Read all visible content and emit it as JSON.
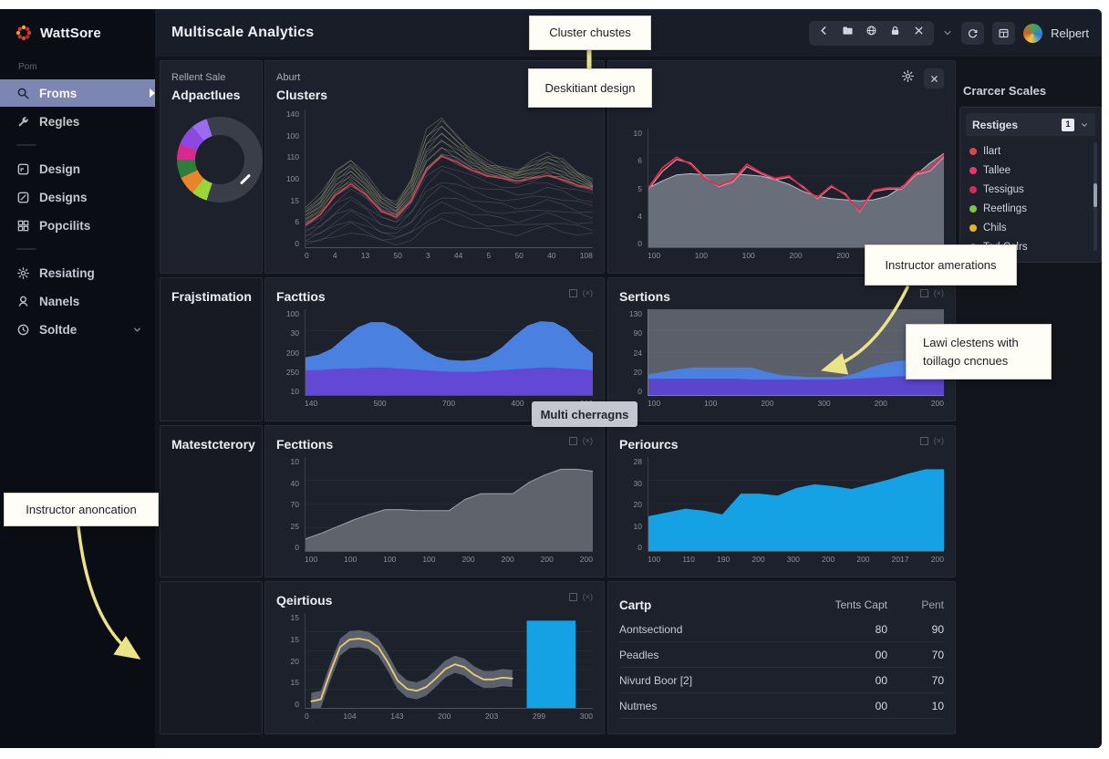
{
  "app": {
    "logo_text": "WattSore",
    "header_title": "Multiscale Analytics",
    "report_label": "Relpert"
  },
  "sidebar": {
    "section_label": "Pom",
    "items": [
      {
        "label": "Froms",
        "icon": "search",
        "active": true
      },
      {
        "label": "Regles",
        "icon": "wrench"
      },
      {
        "divider": true
      },
      {
        "label": "Design",
        "icon": "design"
      },
      {
        "label": "Designs",
        "icon": "designs"
      },
      {
        "label": "Popcilits",
        "icon": "grid"
      },
      {
        "divider": true
      },
      {
        "label": "Resiating",
        "icon": "gear"
      },
      {
        "label": "Nanels",
        "icon": "badge"
      },
      {
        "label": "Soltde",
        "icon": "clock",
        "chevron": true
      }
    ]
  },
  "panels": {
    "recent_subtitle": "Rellent Sale",
    "recent_title": "Adpactlues",
    "clusters_subtitle": "Aburt",
    "clusters_title": "Clusters",
    "row2_label": "Frajstimation",
    "facttios_title": "Facttios",
    "sertions_title": "Sertions",
    "row3_label": "Matestcterory",
    "fecttions_title": "Fecttions",
    "periourcs_title": "Periourcs",
    "qeirtious_title": "Qeirtious",
    "corner_glyph": "(×)"
  },
  "right_panel": {
    "title": "Crarcer Scales",
    "dropdown_label": "Restiges",
    "badge": "1",
    "legend": [
      {
        "label": "Ilart",
        "color": "#d94848"
      },
      {
        "label": "Tallee",
        "color": "#e23a6d"
      },
      {
        "label": "Tessigus",
        "color": "#d62a5c"
      },
      {
        "label": "Reetlings",
        "color": "#82c341"
      },
      {
        "label": "Chils",
        "color": "#e6b422"
      },
      {
        "label": "Tod Colrs",
        "color": "#2b9fe6"
      }
    ]
  },
  "table": {
    "title": "Cartp",
    "headers": [
      "Tents Capt",
      "Pent"
    ],
    "rows": [
      {
        "name": "Aontsectiond",
        "v1": "80",
        "v2": "90"
      },
      {
        "name": "Peadles",
        "v1": "00",
        "v2": "70"
      },
      {
        "name": "Nivurd Boor [2]",
        "v1": "00",
        "v2": "70"
      },
      {
        "name": "Nutmes",
        "v1": "00",
        "v2": "10"
      }
    ]
  },
  "annotations": {
    "callout_top_1": "Cluster chustes",
    "callout_top_2": "Deskitiant design",
    "callout_right_1": "Instructor amerations",
    "callout_right_2_line1": "Lawi clestens with",
    "callout_right_2_line2": "toillago cncnues",
    "callout_left": "Instructor anoncation",
    "tooltip": "Multi cherragns"
  },
  "colors": {
    "accent_blue": "#4a80e0",
    "accent_purple": "#6248d4",
    "accent_cyan": "#14a2e4",
    "accent_red": "#d8304e",
    "accent_yellow_line": "#e8cf72",
    "annotation_yellow": "#ebe388",
    "active_item": "#7b86b3"
  },
  "chart_data": [
    {
      "id": "adpactlues_donut",
      "type": "pie",
      "title": "Adpactlues",
      "slices": [
        {
          "label": "gray",
          "value": 55,
          "color": "#3a3e48"
        },
        {
          "label": "lime",
          "value": 6,
          "color": "#9bd636"
        },
        {
          "label": "orange",
          "value": 7,
          "color": "#e8842a"
        },
        {
          "label": "green",
          "value": 7,
          "color": "#2e7d3a"
        },
        {
          "label": "magenta",
          "value": 6,
          "color": "#d82a8c"
        },
        {
          "label": "violet",
          "value": 8,
          "color": "#8a4ae0"
        },
        {
          "label": "light-violet",
          "value": 6,
          "color": "#9a6cf0"
        },
        {
          "label": "gray2",
          "value": 5,
          "color": "#3a3e48"
        }
      ]
    },
    {
      "id": "clusters_surface",
      "type": "area",
      "variant": "3d-wireframe",
      "title": "Clusters",
      "y_ticks": [
        "140",
        "100",
        "110",
        "100",
        "15",
        "6",
        "0"
      ],
      "x_ticks": [
        "0",
        "4",
        "13",
        "50",
        "3",
        "44",
        "5",
        "50",
        "40",
        "108"
      ],
      "layers": [
        {
          "kind": "mesh",
          "n": 8,
          "color": "rgba(125,135,170,0.33)",
          "from": [
            2,
            4,
            8,
            12,
            8,
            4,
            3,
            6,
            14,
            20,
            18,
            14,
            12,
            11,
            10,
            12,
            14,
            12,
            10,
            9
          ],
          "to": [
            16,
            24,
            38,
            46,
            38,
            26,
            22,
            34,
            56,
            66,
            62,
            56,
            52,
            50,
            48,
            50,
            52,
            49,
            45,
            42
          ]
        },
        {
          "kind": "mesh",
          "n": 11,
          "color": "rgba(185,190,150,0.38)",
          "from": [
            16,
            24,
            38,
            46,
            38,
            26,
            22,
            34,
            56,
            66,
            62,
            56,
            52,
            50,
            48,
            50,
            52,
            49,
            45,
            42
          ],
          "to": [
            28,
            38,
            56,
            64,
            52,
            38,
            32,
            50,
            84,
            94,
            82,
            70,
            62,
            58,
            56,
            62,
            68,
            64,
            55,
            48
          ]
        },
        {
          "kind": "line",
          "color": "#d84050",
          "width": 1.6,
          "values": [
            16,
            24,
            38,
            46,
            38,
            26,
            22,
            34,
            56,
            66,
            62,
            56,
            52,
            50,
            48,
            50,
            52,
            49,
            45,
            42
          ]
        }
      ]
    },
    {
      "id": "top_right_line",
      "type": "line",
      "title": "",
      "y_ticks": [
        "10",
        "6",
        "5",
        "4",
        "0"
      ],
      "x_ticks": [
        "100",
        "100",
        "100",
        "200",
        "200",
        "300",
        "150"
      ],
      "grid": [
        20,
        40,
        60,
        80
      ],
      "layers": [
        {
          "kind": "area",
          "color": "#6e7380",
          "opacity": 0.95,
          "stroke": "#b8bcc6",
          "values": [
            50,
            56,
            61,
            62,
            61,
            61,
            62,
            61,
            60,
            57,
            53,
            47,
            43,
            41,
            40,
            39,
            40,
            43,
            51,
            61,
            71,
            79
          ]
        },
        {
          "kind": "line",
          "color": "#e87a9a",
          "width": 1.4,
          "values": [
            49,
            64,
            74,
            71,
            59,
            51,
            55,
            68,
            62,
            57,
            59,
            51,
            41,
            51,
            45,
            30,
            47,
            49,
            49,
            61,
            64,
            76
          ]
        },
        {
          "kind": "line",
          "color": "#d8304e",
          "width": 1.7,
          "values": [
            50,
            67,
            76,
            70,
            58,
            52,
            57,
            70,
            63,
            58,
            60,
            50,
            42,
            52,
            44,
            31,
            48,
            50,
            50,
            63,
            66,
            78
          ]
        }
      ]
    },
    {
      "id": "facttios",
      "type": "area",
      "title": "Facttios",
      "y_ticks": [
        "100",
        "30",
        "200",
        "250",
        "10"
      ],
      "x_ticks": [
        "140",
        "500",
        "700",
        "400",
        "200"
      ],
      "grid": [
        25,
        50,
        75
      ],
      "layers": [
        {
          "kind": "area",
          "color": "#4a80e0",
          "values": [
            44,
            47,
            54,
            67,
            79,
            85,
            85,
            79,
            67,
            53,
            45,
            41,
            40,
            41,
            45,
            55,
            69,
            81,
            86,
            85,
            77,
            61,
            49
          ]
        },
        {
          "kind": "area",
          "color": "#6248d4",
          "values": [
            29,
            29,
            30,
            31,
            31,
            32,
            32,
            31,
            30,
            29,
            28,
            27,
            27,
            27,
            28,
            29,
            30,
            31,
            32,
            32,
            31,
            30,
            29
          ]
        }
      ]
    },
    {
      "id": "sertions",
      "type": "area",
      "title": "Sertions",
      "plot_bg": "#5a5f6a",
      "y_ticks": [
        "130",
        "90",
        "24",
        "20",
        "0"
      ],
      "x_ticks": [
        "100",
        "100",
        "200",
        "300",
        "200",
        "200"
      ],
      "grid": [
        25,
        50,
        75
      ],
      "layers": [
        {
          "kind": "area",
          "color": "#4a80e0",
          "values": [
            24,
            27,
            30,
            32,
            32,
            32,
            32,
            32,
            27,
            23,
            22,
            21,
            21,
            21,
            25,
            32,
            37,
            40,
            40,
            38,
            37
          ]
        },
        {
          "kind": "area",
          "color": "#5b45cc",
          "values": [
            19,
            19,
            19,
            19,
            19,
            19,
            19,
            18,
            18,
            18,
            18,
            18,
            18,
            18,
            19,
            20,
            21,
            22,
            22,
            22,
            22
          ]
        }
      ]
    },
    {
      "id": "fecttions",
      "type": "area",
      "title": "Fecttions",
      "y_ticks": [
        "10",
        "40",
        "70",
        "25",
        "0"
      ],
      "x_ticks": [
        "100",
        "100",
        "100",
        "100",
        "200",
        "200",
        "200",
        "200"
      ],
      "grid": [
        25,
        50,
        75
      ],
      "layers": [
        {
          "kind": "area",
          "color": "#656972",
          "opacity": 0.92,
          "stroke": "#9aa0aa",
          "values": [
            13,
            19,
            26,
            33,
            39,
            44,
            44,
            43,
            43,
            43,
            55,
            61,
            61,
            61,
            73,
            81,
            87,
            87,
            85
          ]
        }
      ]
    },
    {
      "id": "periourcs",
      "type": "area",
      "title": "Periourcs",
      "y_ticks": [
        "28",
        "30",
        "20",
        "10",
        "0"
      ],
      "x_ticks": [
        "100",
        "110",
        "190",
        "200",
        "300",
        "200",
        "200",
        "2017",
        "200"
      ],
      "grid": [
        25,
        50,
        75
      ],
      "layers": [
        {
          "kind": "area",
          "color": "#14a2e4",
          "values": [
            37,
            41,
            45,
            43,
            39,
            61,
            61,
            59,
            67,
            71,
            69,
            66,
            71,
            76,
            82,
            87,
            87
          ]
        }
      ]
    },
    {
      "id": "qeirtious",
      "type": "line",
      "title": "Qeirtious",
      "y_ticks": [
        "15",
        "15",
        "20",
        "15",
        "0"
      ],
      "x_ticks": [
        "0",
        "104",
        "143",
        "200",
        "203",
        "299",
        "300"
      ],
      "grid": [
        20,
        40,
        60,
        80
      ],
      "layers": [
        {
          "kind": "band",
          "spread": 9,
          "color": "rgba(110,114,126,0.8)",
          "span": [
            0.02,
            0.72
          ],
          "values": [
            7,
            9,
            38,
            64,
            72,
            73,
            71,
            64,
            48,
            29,
            20,
            18,
            22,
            31,
            41,
            46,
            43,
            35,
            30,
            30,
            32,
            31
          ]
        },
        {
          "kind": "bar",
          "x0": 0.77,
          "x1": 0.94,
          "h": 0.92,
          "color": "#14a2e4"
        },
        {
          "kind": "line",
          "color": "#e8cf72",
          "width": 1.8,
          "span": [
            0.02,
            0.72
          ],
          "values": [
            7,
            9,
            38,
            64,
            72,
            73,
            71,
            64,
            48,
            29,
            20,
            18,
            22,
            31,
            41,
            46,
            43,
            35,
            30,
            30,
            32,
            31
          ]
        }
      ]
    }
  ]
}
